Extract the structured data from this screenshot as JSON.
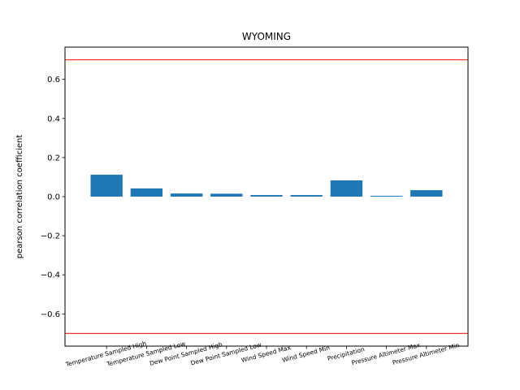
{
  "chart_data": {
    "type": "bar",
    "title": "WYOMING",
    "xlabel": "",
    "ylabel": "pearson correlation coefficient",
    "categories": [
      "Temperature Sampled High",
      "Temperature Sampled Low",
      "Dew Point Sampled High",
      "Dew Point Sampled Low",
      "Wind Speed Max",
      "Wind Speed Min",
      "Precipitation",
      "Pressure Altimeter Max",
      "Pressure Altimeter Min"
    ],
    "values": [
      0.112,
      0.042,
      0.016,
      0.015,
      0.008,
      0.008,
      0.083,
      0.004,
      0.033
    ],
    "ylim": [
      -0.765,
      0.765
    ],
    "yticks": [
      -0.6,
      -0.4,
      -0.2,
      0.0,
      0.2,
      0.4,
      0.6
    ],
    "ytick_labels": [
      "−0.6",
      "−0.4",
      "−0.2",
      "0.0",
      "0.2",
      "0.4",
      "0.6"
    ],
    "reference_lines": [
      0.7,
      -0.7
    ],
    "bar_color": "#1f77b4",
    "reference_line_color": "#ff0000",
    "grid": false
  }
}
